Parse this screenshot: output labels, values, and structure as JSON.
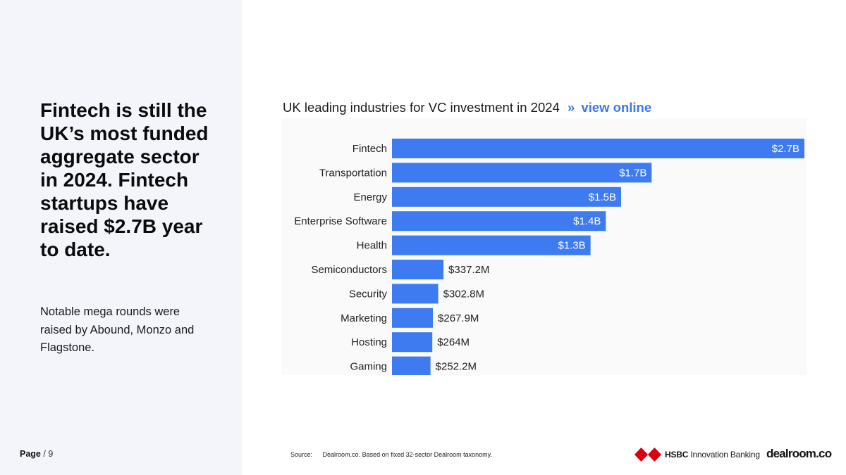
{
  "headline": "Fintech is still the UK’s most funded aggregate sector in 2024. Fintech startups have raised $2.7B year to date.",
  "subtext": "Notable mega rounds were raised by Abound, Monzo and Flagstone.",
  "page": {
    "label": "Page",
    "number": "/ 9"
  },
  "chart_header": {
    "title": "UK leading industries for VC investment in 2024",
    "separator": "»",
    "link": "view online"
  },
  "source": {
    "key": "Source:",
    "text": "Dealroom.co. Based on fixed 32-sector Dealroom taxonomy."
  },
  "logos": {
    "hsbc_bold": "HSBC",
    "hsbc_rest": "Innovation Banking",
    "dealroom": "dealroom.co"
  },
  "colors": {
    "bar": "#3f7bf0",
    "accent": "#3b78e7",
    "panel": "#f3f5fb",
    "hsbc_red": "#db0011"
  },
  "chart_data": {
    "type": "bar",
    "orientation": "horizontal",
    "title": "UK leading industries for VC investment in 2024",
    "xlabel": "",
    "ylabel": "",
    "unit": "USD",
    "xlim": [
      0,
      2700000000
    ],
    "categories": [
      "Fintech",
      "Transportation",
      "Energy",
      "Enterprise Software",
      "Health",
      "Semiconductors",
      "Security",
      "Marketing",
      "Hosting",
      "Gaming"
    ],
    "values": [
      2700000000,
      1700000000,
      1500000000,
      1400000000,
      1300000000,
      337200000,
      302800000,
      267900000,
      264000000,
      252200000
    ],
    "labels": [
      "$2.7B",
      "$1.7B",
      "$1.5B",
      "$1.4B",
      "$1.3B",
      "$337.2M",
      "$302.8M",
      "$267.9M",
      "$264M",
      "$252.2M"
    ],
    "grid": false,
    "legend": "none"
  }
}
